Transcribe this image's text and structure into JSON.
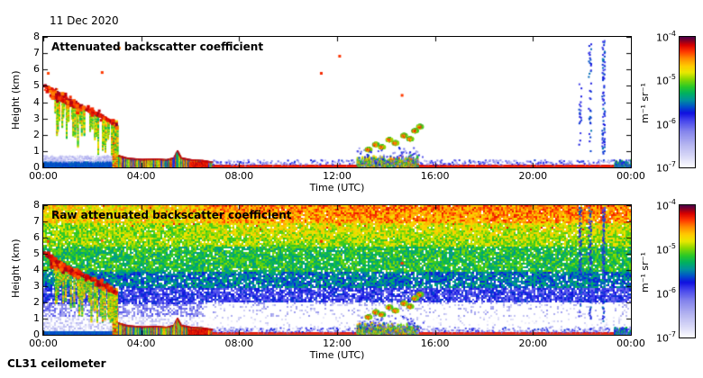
{
  "header": {
    "date_label": "11 Dec 2020",
    "instrument_label": "CL31 ceilometer"
  },
  "chart_data": {
    "type": "heatmap",
    "title": "11 Dec 2020",
    "instrument": "CL31 ceilometer",
    "xlabel": "Time (UTC)",
    "ylabel": "Height (km)",
    "x_range_hours": [
      0,
      24
    ],
    "y_range_km": [
      0,
      8
    ],
    "x_tick_hours": [
      0,
      4,
      8,
      12,
      16,
      20,
      24
    ],
    "x_tick_labels": [
      "00:00",
      "04:00",
      "08:00",
      "12:00",
      "16:00",
      "20:00",
      "00:00"
    ],
    "y_tick_km": [
      0,
      1,
      2,
      3,
      4,
      5,
      6,
      7,
      8
    ],
    "y_tick_labels": [
      "0",
      "1",
      "2",
      "3",
      "4",
      "5",
      "6",
      "7",
      "8"
    ],
    "colorbar_unit": "m⁻¹ sr⁻¹",
    "colorbar_ticks": [
      {
        "base": "10",
        "exp": "-4"
      },
      {
        "base": "10",
        "exp": "-5"
      },
      {
        "base": "10",
        "exp": "-6"
      },
      {
        "base": "10",
        "exp": "-7"
      }
    ],
    "value_log10_range": [
      -7,
      -4
    ],
    "colorbar_gradient": [
      [
        0.0,
        "#ffffff"
      ],
      [
        0.08,
        "#dcdcf8"
      ],
      [
        0.18,
        "#b4b4f0"
      ],
      [
        0.28,
        "#8484ec"
      ],
      [
        0.36,
        "#4848ec"
      ],
      [
        0.42,
        "#1010e0"
      ],
      [
        0.47,
        "#0054c8"
      ],
      [
        0.52,
        "#00929c"
      ],
      [
        0.57,
        "#00b060"
      ],
      [
        0.62,
        "#28c828"
      ],
      [
        0.68,
        "#8cd800"
      ],
      [
        0.73,
        "#e8e800"
      ],
      [
        0.78,
        "#ffcc00"
      ],
      [
        0.84,
        "#ff8800"
      ],
      [
        0.89,
        "#ff3800"
      ],
      [
        0.94,
        "#d80000"
      ],
      [
        0.97,
        "#8e0020"
      ],
      [
        1.0,
        "#500048"
      ]
    ],
    "panels": [
      {
        "title": "Attenuated backscatter coefficient",
        "kind": "processed"
      },
      {
        "title": "Raw attenuated backscatter coefficient",
        "kind": "raw"
      }
    ],
    "raw_noise": {
      "bands": [
        {
          "hmin": 0.0,
          "hmax": 1.2,
          "v": 0.1,
          "density": 0.55
        },
        {
          "hmin": 1.2,
          "hmax": 2.0,
          "v": 0.27,
          "density": 0.6
        },
        {
          "hmin": 2.0,
          "hmax": 3.0,
          "v": 0.38,
          "density": 0.85
        },
        {
          "hmin": 3.0,
          "hmax": 4.0,
          "v": 0.5,
          "density": 0.9
        },
        {
          "hmin": 4.0,
          "hmax": 5.5,
          "v": 0.6,
          "density": 0.92
        },
        {
          "hmin": 5.5,
          "hmax": 7.0,
          "v": 0.68,
          "density": 0.95
        },
        {
          "hmin": 7.0,
          "hmax": 8.0,
          "v": 0.76,
          "density": 0.97
        }
      ],
      "jitter": 0.17,
      "warm_top": {
        "t_start": 5.5,
        "h_min": 5.5,
        "amount": 0.09
      },
      "day_clear": {
        "t_start": 6.5,
        "h_max": 2.1,
        "density_factor": 0.28
      }
    },
    "features": {
      "descending_cloud": {
        "paths": [
          [
            [
              0.0,
              5.1
            ],
            [
              0.6,
              4.55
            ],
            [
              1.2,
              4.05
            ],
            [
              1.8,
              3.6
            ],
            [
              2.4,
              3.15
            ],
            [
              2.95,
              2.65
            ]
          ],
          [
            [
              0.25,
              4.55
            ],
            [
              0.7,
              4.2
            ],
            [
              1.1,
              3.9
            ],
            [
              1.4,
              3.7
            ]
          ]
        ],
        "blob_count": 70
      },
      "fallstreaks": {
        "t0": 0.4,
        "t1": 3.0,
        "step": 0.055,
        "min_bottom": 0.85,
        "max_length": 2.1
      },
      "ground_column": {
        "t": 2.9,
        "top": 2.9
      },
      "precip_band": {
        "t0": 2.95,
        "t1": 6.9,
        "top_line": [
          [
            2.95,
            0.8
          ],
          [
            3.4,
            0.6
          ],
          [
            4.0,
            0.52
          ],
          [
            4.6,
            0.55
          ],
          [
            5.0,
            0.5
          ],
          [
            5.3,
            0.62
          ],
          [
            5.45,
            1.05
          ],
          [
            5.6,
            0.62
          ],
          [
            6.0,
            0.5
          ],
          [
            6.5,
            0.45
          ],
          [
            6.9,
            0.35
          ]
        ],
        "red_patch": {
          "t0": 5.95,
          "t1": 6.75,
          "h": 0.42
        }
      },
      "surface_layer": {
        "t0": 6.9,
        "t1": 24,
        "line_h": 0.14,
        "speckle_top": 0.5,
        "bump": {
          "t0": 12.8,
          "t1": 15.3,
          "band_top": 0.8,
          "speckle_top": 1.3
        },
        "late_bump": {
          "t0": 23.3,
          "t1": 24,
          "top": 0.55
        }
      },
      "early_surface": {
        "t0": 0,
        "t1": 2.95,
        "solid_top": 0.36,
        "speckle_top": 0.75
      },
      "cumulus": {
        "blobs": [
          [
            13.25,
            1.15
          ],
          [
            13.55,
            1.45
          ],
          [
            13.8,
            1.3
          ],
          [
            14.1,
            1.75
          ],
          [
            14.35,
            1.55
          ],
          [
            14.7,
            2.0
          ],
          [
            14.95,
            1.8
          ],
          [
            15.15,
            2.3
          ],
          [
            15.35,
            2.55
          ]
        ],
        "rx": 0.14,
        "ry": 0.13
      },
      "blue_streaks": [
        {
          "t": 21.9,
          "hmin": 1.2,
          "hmax": 5.4,
          "density": 0.22
        },
        {
          "t": 22.3,
          "hmin": 1.0,
          "hmax": 7.6,
          "density": 0.3
        },
        {
          "t": 22.85,
          "hmin": 0.9,
          "hmax": 7.8,
          "density": 0.45
        }
      ],
      "spot_dots": [
        [
          0.15,
          5.85
        ],
        [
          2.35,
          5.9
        ],
        [
          3.05,
          7.4
        ],
        [
          11.3,
          5.85
        ],
        [
          12.05,
          6.9
        ],
        [
          14.6,
          4.5
        ]
      ]
    }
  }
}
